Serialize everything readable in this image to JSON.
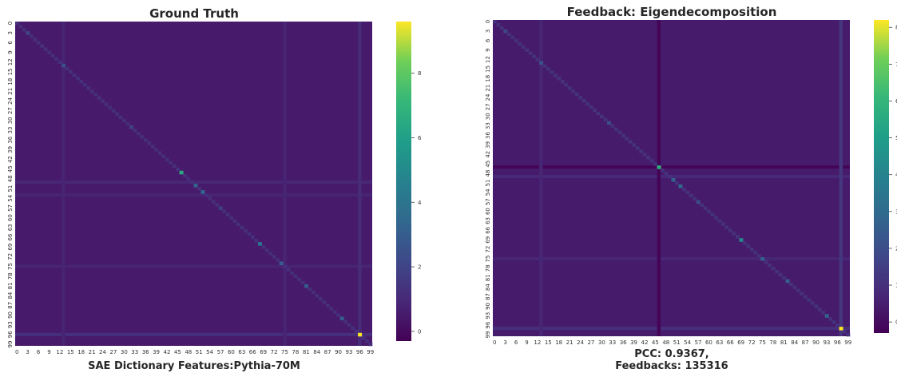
{
  "chart_data": [
    {
      "type": "heatmap",
      "title": "Ground Truth",
      "xlabel": "SAE Dictionary Features:Pythia-70M",
      "ylabel": "",
      "size": 100,
      "x_ticks": [
        "0",
        "3",
        "6",
        "9",
        "12",
        "15",
        "18",
        "21",
        "24",
        "27",
        "30",
        "33",
        "36",
        "39",
        "42",
        "45",
        "48",
        "51",
        "54",
        "57",
        "60",
        "63",
        "66",
        "69",
        "72",
        "75",
        "78",
        "81",
        "84",
        "87",
        "90",
        "93",
        "96",
        "99"
      ],
      "y_ticks": [
        "0",
        "3",
        "6",
        "9",
        "12",
        "15",
        "18",
        "21",
        "24",
        "27",
        "30",
        "33",
        "36",
        "39",
        "42",
        "45",
        "48",
        "51",
        "54",
        "57",
        "60",
        "63",
        "66",
        "69",
        "72",
        "75",
        "78",
        "81",
        "84",
        "87",
        "90",
        "93",
        "96",
        "99"
      ],
      "colorbar": {
        "range": [
          -0.3,
          9.6
        ],
        "ticks": [
          "0",
          "2",
          "4",
          "6",
          "8"
        ]
      },
      "base_value": 0.5,
      "diagonal_value": 1.2,
      "highlights": [
        {
          "row": 3,
          "col": 3,
          "value": 2.0
        },
        {
          "row": 13,
          "col": 13,
          "value": 2.4
        },
        {
          "row": 32,
          "col": 32,
          "value": 2.0
        },
        {
          "row": 46,
          "col": 46,
          "value": 6.5
        },
        {
          "row": 50,
          "col": 50,
          "value": 3.2
        },
        {
          "row": 52,
          "col": 52,
          "value": 3.4
        },
        {
          "row": 57,
          "col": 57,
          "value": 1.8
        },
        {
          "row": 68,
          "col": 68,
          "value": 4.0
        },
        {
          "row": 74,
          "col": 74,
          "value": 3.0
        },
        {
          "row": 81,
          "col": 81,
          "value": 3.0
        },
        {
          "row": 91,
          "col": 91,
          "value": 3.0
        },
        {
          "row": 96,
          "col": 96,
          "value": 9.6
        }
      ],
      "bright_rows": [
        {
          "index": 96,
          "value": 1.2
        },
        {
          "index": 49,
          "value": 0.9
        },
        {
          "index": 53,
          "value": 0.8
        },
        {
          "index": 75,
          "value": 0.8
        }
      ],
      "bright_cols": [
        {
          "index": 96,
          "value": 1.1
        },
        {
          "index": 13,
          "value": 0.8
        },
        {
          "index": 75,
          "value": 0.8
        }
      ]
    },
    {
      "type": "heatmap",
      "title": "Feedback: Eigendecomposition",
      "xlabel": "PCC: 0.9367,",
      "xlabel_line2": "Feedbacks: 135316",
      "ylabel": "",
      "size": 100,
      "x_ticks": [
        "0",
        "3",
        "6",
        "9",
        "12",
        "15",
        "18",
        "21",
        "24",
        "27",
        "30",
        "33",
        "36",
        "39",
        "42",
        "45",
        "48",
        "51",
        "54",
        "57",
        "60",
        "63",
        "66",
        "69",
        "72",
        "75",
        "78",
        "81",
        "84",
        "87",
        "90",
        "93",
        "96",
        "99"
      ],
      "y_ticks": [
        "0",
        "3",
        "6",
        "9",
        "12",
        "15",
        "18",
        "21",
        "24",
        "27",
        "30",
        "33",
        "36",
        "39",
        "42",
        "45",
        "48",
        "51",
        "54",
        "57",
        "60",
        "63",
        "66",
        "69",
        "72",
        "75",
        "78",
        "81",
        "84",
        "87",
        "90",
        "93",
        "96",
        "99"
      ],
      "colorbar": {
        "range": [
          -0.3,
          8.2
        ],
        "ticks": [
          "0",
          "1",
          "2",
          "3",
          "4",
          "5",
          "6",
          "7",
          "8"
        ]
      },
      "base_value": 0.4,
      "diagonal_value": 1.1,
      "highlights": [
        {
          "row": 3,
          "col": 3,
          "value": 1.8
        },
        {
          "row": 13,
          "col": 13,
          "value": 2.2
        },
        {
          "row": 32,
          "col": 32,
          "value": 2.0
        },
        {
          "row": 46,
          "col": 46,
          "value": 5.8
        },
        {
          "row": 50,
          "col": 50,
          "value": 2.8
        },
        {
          "row": 52,
          "col": 52,
          "value": 3.0
        },
        {
          "row": 57,
          "col": 57,
          "value": 2.0
        },
        {
          "row": 69,
          "col": 69,
          "value": 4.2
        },
        {
          "row": 75,
          "col": 75,
          "value": 2.6
        },
        {
          "row": 82,
          "col": 82,
          "value": 2.6
        },
        {
          "row": 93,
          "col": 93,
          "value": 2.8
        },
        {
          "row": 97,
          "col": 97,
          "value": 8.2
        }
      ],
      "bright_rows": [
        {
          "index": 97,
          "value": 1.0
        },
        {
          "index": 46,
          "value": -0.2
        },
        {
          "index": 49,
          "value": 0.8
        },
        {
          "index": 75,
          "value": 0.7
        }
      ],
      "bright_cols": [
        {
          "index": 97,
          "value": 1.2
        },
        {
          "index": 13,
          "value": 0.7
        },
        {
          "index": 46,
          "value": -0.2
        }
      ]
    }
  ]
}
